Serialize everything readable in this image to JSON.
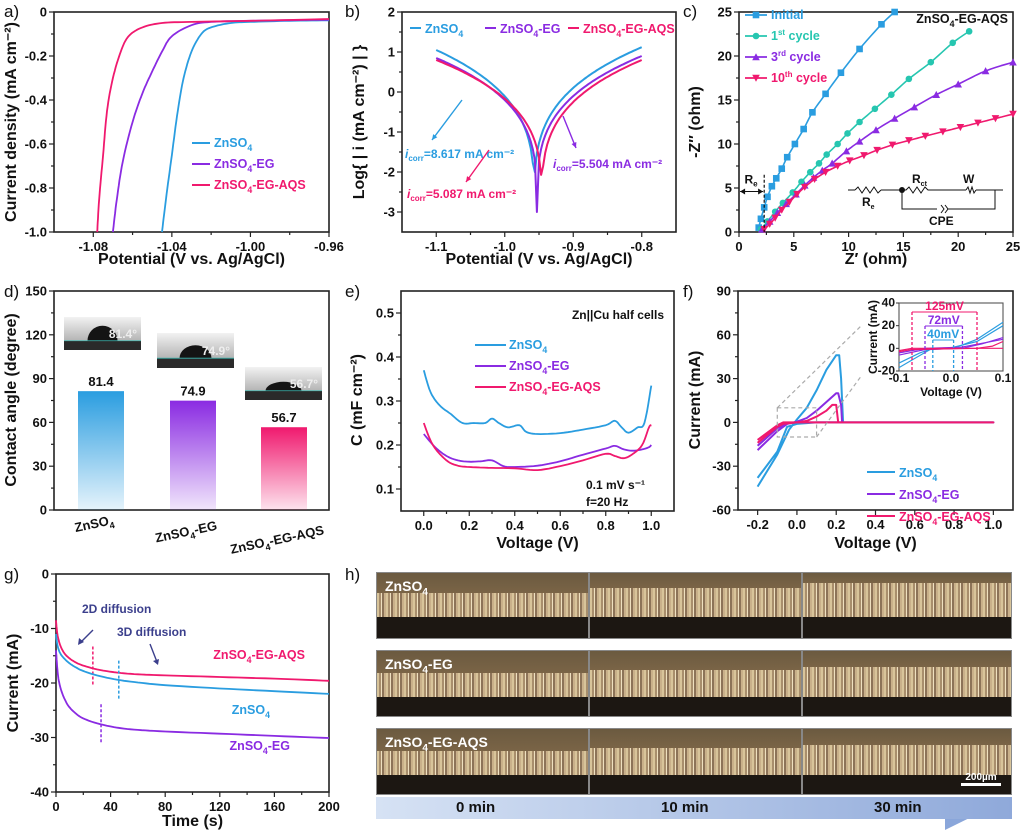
{
  "colors": {
    "znso4": "#2a9de0",
    "eg": "#8a2be2",
    "aqs": "#f0196e",
    "cycle1": "#26c6b0",
    "grey": "#aaaaaa"
  },
  "panel_labels": [
    "a)",
    "b)",
    "c)",
    "d)",
    "e)",
    "f)",
    "g)",
    "h)"
  ],
  "chart_data": [
    {
      "id": "a",
      "type": "line",
      "xlabel": "Potential (V vs. Ag/AgCl)",
      "ylabel": "Current density (mA cm⁻²)",
      "xlim": [
        -1.1,
        -0.96
      ],
      "ylim": [
        -1.0,
        0
      ],
      "xticks": [
        -1.08,
        -1.04,
        -1.0,
        -0.96
      ],
      "xtick_labels": [
        "-1.08",
        "-1.04",
        "-1.00",
        "-0.96"
      ],
      "yticks": [
        0,
        -0.2,
        -0.4,
        -0.6,
        -0.8,
        -1.0
      ],
      "ytick_labels": [
        "0",
        "-0.2",
        "-0.4",
        "-0.6",
        "-0.8",
        "-1.0"
      ],
      "legend": "center-right",
      "series": [
        {
          "name": "ZnSO4",
          "label": "ZnSO₄",
          "color": "znso4",
          "x": [
            -1.045,
            -1.043,
            -1.04,
            -1.037,
            -1.034,
            -1.03,
            -1.025,
            -1.02,
            -1.01,
            -1.0,
            -0.98,
            -0.96
          ],
          "y": [
            -1.0,
            -0.85,
            -0.65,
            -0.45,
            -0.3,
            -0.18,
            -0.1,
            -0.07,
            -0.05,
            -0.045,
            -0.04,
            -0.038
          ]
        },
        {
          "name": "ZnSO4-EG",
          "label": "ZnSO₄-EG",
          "color": "eg",
          "x": [
            -1.07,
            -1.068,
            -1.065,
            -1.06,
            -1.055,
            -1.05,
            -1.045,
            -1.04,
            -1.03,
            -1.02,
            -1.0,
            -0.96
          ],
          "y": [
            -1.0,
            -0.85,
            -0.68,
            -0.5,
            -0.37,
            -0.27,
            -0.18,
            -0.11,
            -0.06,
            -0.045,
            -0.04,
            -0.035
          ]
        },
        {
          "name": "ZnSO4-EG-AQS",
          "label": "ZnSO₄-EG-AQS",
          "color": "aqs",
          "x": [
            -1.078,
            -1.077,
            -1.075,
            -1.073,
            -1.07,
            -1.066,
            -1.062,
            -1.055,
            -1.045,
            -1.03,
            -1.0,
            -0.96
          ],
          "y": [
            -1.0,
            -0.85,
            -0.65,
            -0.45,
            -0.3,
            -0.18,
            -0.11,
            -0.07,
            -0.05,
            -0.045,
            -0.04,
            -0.032
          ]
        }
      ]
    },
    {
      "id": "b",
      "type": "line",
      "xlabel": "Potential (V vs. Ag/AgCl)",
      "ylabel": "Log{ | i (mA cm⁻²) | }",
      "xlim": [
        -1.15,
        -0.75
      ],
      "ylim": [
        -3.5,
        2
      ],
      "xticks": [
        -1.1,
        -1.0,
        -0.9,
        -0.8
      ],
      "xtick_labels": [
        "-1.1",
        "-1.0",
        "-0.9",
        "-0.8"
      ],
      "yticks": [
        2,
        1,
        0,
        -1,
        -2,
        -3
      ],
      "ytick_labels": [
        "2",
        "1",
        "0",
        "-1",
        "-2",
        "-3"
      ],
      "legend": "top",
      "series": [
        {
          "name": "ZnSO4",
          "label": "ZnSO₄",
          "color": "znso4",
          "ecorr": -0.957,
          "left": 1.05,
          "right": 1.12
        },
        {
          "name": "ZnSO4-EG",
          "label": "ZnSO₄-EG",
          "color": "eg",
          "ecorr": -0.953,
          "left": 0.85,
          "right": 0.9
        },
        {
          "name": "ZnSO4-EG-AQS",
          "label": "ZnSO₄-EG-AQS",
          "color": "aqs",
          "ecorr": -0.946,
          "left": 0.8,
          "right": 0.8
        }
      ],
      "annotations": [
        {
          "text": "=8.617 mA cm⁻²",
          "prefix": "i",
          "sub": "corr",
          "color": "znso4"
        },
        {
          "text": "=5.504 mA cm⁻²",
          "prefix": "i",
          "sub": "corr",
          "color": "eg"
        },
        {
          "text": "=5.087 mA cm⁻²",
          "prefix": "i",
          "sub": "corr",
          "color": "aqs"
        }
      ]
    },
    {
      "id": "c",
      "type": "scatter",
      "xlabel": "Z′ (ohm)",
      "ylabel": "-Z″ (ohm)",
      "xlim": [
        0,
        25
      ],
      "ylim": [
        0,
        25
      ],
      "xticks": [
        0,
        5,
        10,
        15,
        20,
        25
      ],
      "yticks": [
        0,
        5,
        10,
        15,
        20,
        25
      ],
      "title_inset": "ZnSO₄-EG-AQS",
      "legend": "top-left",
      "series": [
        {
          "name": "Initial",
          "label": "Initial",
          "sup": "",
          "color": "znso4",
          "marker": "square",
          "x": [
            1.8,
            2.0,
            2.3,
            2.6,
            3.0,
            3.4,
            3.9,
            4.4,
            5.1,
            5.9,
            6.7,
            7.9,
            9.3,
            11.0,
            13.0,
            14.2
          ],
          "y": [
            0.5,
            1.5,
            2.8,
            4.0,
            5.2,
            6.1,
            7.2,
            8.5,
            10.0,
            11.7,
            13.6,
            15.7,
            18.1,
            20.8,
            23.6,
            25.0
          ]
        },
        {
          "name": "1st cycle",
          "label": "1",
          "sup": "st",
          "suffix": " cycle",
          "color": "cycle1",
          "marker": "circle",
          "x": [
            2.0,
            2.6,
            3.3,
            4.0,
            4.9,
            5.7,
            6.5,
            7.3,
            8.0,
            9.0,
            9.9,
            11.0,
            12.4,
            13.9,
            15.5,
            17.5,
            19.5,
            21.0
          ],
          "y": [
            0.3,
            1.2,
            2.3,
            3.3,
            4.5,
            5.7,
            6.8,
            7.8,
            8.8,
            10.0,
            11.2,
            12.5,
            14.0,
            15.6,
            17.4,
            19.3,
            21.5,
            22.8
          ]
        },
        {
          "name": "3rd cycle",
          "label": "3",
          "sup": "rd",
          "suffix": " cycle",
          "color": "eg",
          "marker": "triangle-up",
          "x": [
            2.1,
            2.8,
            3.5,
            4.3,
            5.2,
            6.0,
            6.8,
            7.6,
            8.5,
            9.8,
            11.0,
            12.5,
            14.2,
            16.0,
            18.0,
            20.0,
            22.5,
            25.0
          ],
          "y": [
            0.3,
            1.2,
            2.2,
            3.2,
            4.3,
            5.3,
            6.2,
            7.0,
            7.8,
            9.2,
            10.3,
            11.6,
            12.9,
            14.2,
            15.6,
            16.8,
            18.3,
            19.3
          ]
        },
        {
          "name": "10th cycle",
          "label": "10",
          "sup": "th",
          "suffix": " cycle",
          "color": "aqs",
          "marker": "triangle-down",
          "x": [
            2.3,
            2.8,
            3.3,
            3.9,
            4.6,
            5.3,
            6.0,
            6.9,
            7.9,
            9.0,
            10.1,
            11.4,
            12.6,
            14.0,
            15.5,
            17.0,
            18.6,
            20.2,
            21.8,
            23.4,
            25.0
          ],
          "y": [
            0.3,
            0.9,
            1.6,
            2.5,
            3.4,
            4.3,
            5.1,
            6.0,
            6.8,
            7.5,
            8.1,
            8.7,
            9.3,
            9.9,
            10.4,
            10.9,
            11.4,
            11.9,
            12.4,
            12.9,
            13.4
          ]
        }
      ],
      "re_label": "R",
      "re_sub": "e",
      "circuit": {
        "re": "R",
        "re_sub": "e",
        "rct": "R",
        "rct_sub": "ct",
        "w": "W",
        "cpe": "CPE"
      }
    },
    {
      "id": "d",
      "type": "bar",
      "ylabel": "Contact angle (degree)",
      "ylim": [
        0,
        150
      ],
      "yticks": [
        0,
        30,
        60,
        90,
        120,
        150
      ],
      "categories": [
        "ZnSO₄",
        "ZnSO₄-EG",
        "ZnSO₄-EG-AQS"
      ],
      "values": [
        81.4,
        74.9,
        56.7
      ],
      "value_labels": [
        "81.4",
        "74.9",
        "56.7"
      ],
      "colors": [
        "znso4",
        "eg",
        "aqs"
      ],
      "droplet_labels": [
        "81.4°",
        "74.9°",
        "56.7°"
      ]
    },
    {
      "id": "e",
      "type": "line",
      "xlabel": "Voltage (V)",
      "ylabel": "C (mF cm⁻²)",
      "xlim": [
        -0.1,
        1.1
      ],
      "ylim": [
        0.05,
        0.55
      ],
      "xticks": [
        0.0,
        0.2,
        0.4,
        0.6,
        0.8,
        1.0
      ],
      "xtick_labels": [
        "0.0",
        "0.2",
        "0.4",
        "0.6",
        "0.8",
        "1.0"
      ],
      "yticks": [
        0.1,
        0.2,
        0.3,
        0.4,
        0.5
      ],
      "ytick_labels": [
        "0.1",
        "0.2",
        "0.3",
        "0.4",
        "0.5"
      ],
      "annotation_top": "Zn||Cu half cells",
      "annotation_bottom": [
        "0.1 mV s⁻¹",
        "f=20 Hz"
      ],
      "legend": "upper-center",
      "series": [
        {
          "name": "ZnSO4",
          "label": "ZnSO₄",
          "color": "znso4",
          "x": [
            0,
            0.03,
            0.07,
            0.12,
            0.17,
            0.22,
            0.27,
            0.3,
            0.33,
            0.37,
            0.42,
            0.45,
            0.5,
            0.6,
            0.7,
            0.8,
            0.84,
            0.87,
            0.9,
            0.94,
            0.97,
            1.0
          ],
          "y": [
            0.37,
            0.32,
            0.29,
            0.27,
            0.25,
            0.25,
            0.25,
            0.26,
            0.25,
            0.24,
            0.245,
            0.23,
            0.225,
            0.227,
            0.235,
            0.245,
            0.255,
            0.24,
            0.228,
            0.24,
            0.25,
            0.335
          ]
        },
        {
          "name": "ZnSO4-EG",
          "label": "ZnSO₄-EG",
          "color": "eg",
          "x": [
            0,
            0.05,
            0.1,
            0.15,
            0.2,
            0.25,
            0.3,
            0.35,
            0.4,
            0.5,
            0.6,
            0.7,
            0.8,
            0.84,
            0.88,
            0.92,
            0.96,
            0.99,
            1.0
          ],
          "y": [
            0.225,
            0.195,
            0.175,
            0.165,
            0.162,
            0.163,
            0.165,
            0.152,
            0.15,
            0.153,
            0.163,
            0.178,
            0.192,
            0.198,
            0.19,
            0.187,
            0.19,
            0.195,
            0.2
          ]
        },
        {
          "name": "ZnSO4-EG-AQS",
          "label": "ZnSO₄-EG-AQS",
          "color": "aqs",
          "x": [
            0,
            0.04,
            0.1,
            0.15,
            0.2,
            0.3,
            0.4,
            0.5,
            0.6,
            0.7,
            0.8,
            0.84,
            0.88,
            0.92,
            0.96,
            0.99,
            1.0
          ],
          "y": [
            0.25,
            0.2,
            0.165,
            0.153,
            0.15,
            0.148,
            0.147,
            0.143,
            0.152,
            0.165,
            0.18,
            0.175,
            0.17,
            0.18,
            0.2,
            0.24,
            0.245
          ]
        }
      ]
    },
    {
      "id": "f",
      "type": "line",
      "xlabel": "Voltage (V)",
      "ylabel": "Current (mA)",
      "xlim": [
        -0.3,
        1.1
      ],
      "ylim": [
        -60,
        90
      ],
      "xticks": [
        -0.2,
        0.0,
        0.2,
        0.4,
        0.6,
        0.8,
        1.0
      ],
      "xtick_labels": [
        "-0.2",
        "0.0",
        "0.2",
        "0.4",
        "0.6",
        "0.8",
        "1.0"
      ],
      "yticks": [
        90,
        60,
        30,
        0,
        -30,
        -60
      ],
      "ytick_labels": [
        "90",
        "60",
        "30",
        "0",
        "-30",
        "-60"
      ],
      "legend": "bottom-right",
      "series": [
        {
          "name": "ZnSO4",
          "label": "ZnSO₄",
          "color": "znso4",
          "x": [
            -0.2,
            -0.1,
            -0.04,
            0.0,
            0.05,
            0.1,
            0.15,
            0.2,
            0.215,
            0.225,
            0.235,
            0.3,
            1.0,
            0.235,
            0.1,
            0.0,
            -0.05,
            -0.1,
            -0.2
          ],
          "y": [
            -44,
            -22,
            -5,
            2,
            10,
            22,
            36,
            46,
            46,
            30,
            0,
            0,
            0,
            0,
            0,
            -1,
            -3,
            -20,
            -38
          ]
        },
        {
          "name": "ZnSO4-EG",
          "label": "ZnSO₄-EG",
          "color": "eg",
          "x": [
            -0.2,
            -0.1,
            -0.05,
            0.0,
            0.05,
            0.1,
            0.15,
            0.2,
            0.21,
            0.225,
            0.23,
            0.3,
            1.0,
            0.23,
            0.0,
            -0.05,
            -0.1,
            -0.2
          ],
          "y": [
            -19,
            -6,
            -1,
            0.5,
            3,
            8,
            14,
            20,
            20,
            12,
            0,
            0,
            0,
            0,
            0,
            -0.5,
            -4,
            -16
          ]
        },
        {
          "name": "ZnSO4-EG-AQS",
          "label": "ZnSO₄-EG-AQS",
          "color": "aqs",
          "x": [
            -0.2,
            -0.1,
            -0.07,
            0.0,
            0.05,
            0.1,
            0.15,
            0.18,
            0.2,
            0.21,
            0.3,
            1.0,
            0.21,
            0.0,
            -0.07,
            -0.1,
            -0.2
          ],
          "y": [
            -14,
            -3,
            -1,
            0,
            1,
            4,
            8,
            12,
            12,
            0,
            0,
            0,
            0,
            0,
            0,
            -2,
            -12
          ]
        }
      ],
      "inset": {
        "xlabel": "Voltage (V)",
        "ylabel": "Current (mA)",
        "xlim": [
          -0.1,
          0.1
        ],
        "ylim": [
          -20,
          40
        ],
        "xticks": [
          -0.1,
          0.0,
          0.1
        ],
        "xtick_labels": [
          "-0.1",
          "0.0",
          "0.1"
        ],
        "yticks": [
          -20,
          0,
          20,
          40
        ],
        "ytick_labels": [
          "-20",
          "0",
          "20",
          "40"
        ],
        "overpotentials": [
          {
            "label": "125mV",
            "color": "aqs",
            "x1": -0.075,
            "x2": 0.05
          },
          {
            "label": "72mV",
            "color": "eg",
            "x1": -0.05,
            "x2": 0.022
          },
          {
            "label": "40mV",
            "color": "znso4",
            "x1": -0.035,
            "x2": 0.005
          }
        ]
      }
    },
    {
      "id": "g",
      "type": "line",
      "xlabel": "Time (s)",
      "ylabel": "Current (mA)",
      "xlim": [
        0,
        200
      ],
      "ylim": [
        -40,
        0
      ],
      "xticks": [
        0,
        40,
        80,
        120,
        160,
        200
      ],
      "yticks": [
        0,
        -10,
        -20,
        -30,
        -40
      ],
      "annotations": [
        "2D diffusion",
        "3D diffusion"
      ],
      "series": [
        {
          "name": "ZnSO4-EG-AQS",
          "label": "ZnSO₄-EG-AQS",
          "color": "aqs",
          "x": [
            0,
            1,
            3,
            6,
            10,
            15,
            20,
            30,
            45,
            60,
            80,
            120,
            160,
            200
          ],
          "y": [
            -8.5,
            -11,
            -13,
            -14.5,
            -15.5,
            -16.3,
            -16.8,
            -17.5,
            -18.1,
            -18.4,
            -18.6,
            -18.9,
            -19.2,
            -19.6
          ],
          "transition": 27
        },
        {
          "name": "ZnSO4",
          "label": "ZnSO₄",
          "color": "znso4",
          "x": [
            0,
            1,
            3,
            6,
            10,
            15,
            20,
            30,
            45,
            60,
            80,
            120,
            160,
            200
          ],
          "y": [
            -11,
            -13,
            -14.5,
            -15.5,
            -16.4,
            -17.2,
            -17.8,
            -18.6,
            -19.4,
            -19.9,
            -20.4,
            -21,
            -21.5,
            -22
          ],
          "transition": 46
        },
        {
          "name": "ZnSO4-EG",
          "label": "ZnSO₄-EG",
          "color": "eg",
          "x": [
            0,
            1,
            2,
            4,
            7,
            10,
            15,
            20,
            30,
            45,
            60,
            80,
            120,
            160,
            200
          ],
          "y": [
            -14,
            -17.5,
            -19.5,
            -21.5,
            -23.3,
            -24.5,
            -25.7,
            -26.5,
            -27.4,
            -28.2,
            -28.6,
            -28.9,
            -29.3,
            -29.7,
            -30.1
          ],
          "transition": 33
        }
      ]
    }
  ],
  "panel_h": {
    "rows": [
      {
        "label": "ZnSO₄"
      },
      {
        "label": "ZnSO₄-EG"
      },
      {
        "label": "ZnSO₄-EG-AQS"
      }
    ],
    "times": [
      "0 min",
      "10 min",
      "30 min"
    ],
    "scale_bar": "200µm"
  }
}
